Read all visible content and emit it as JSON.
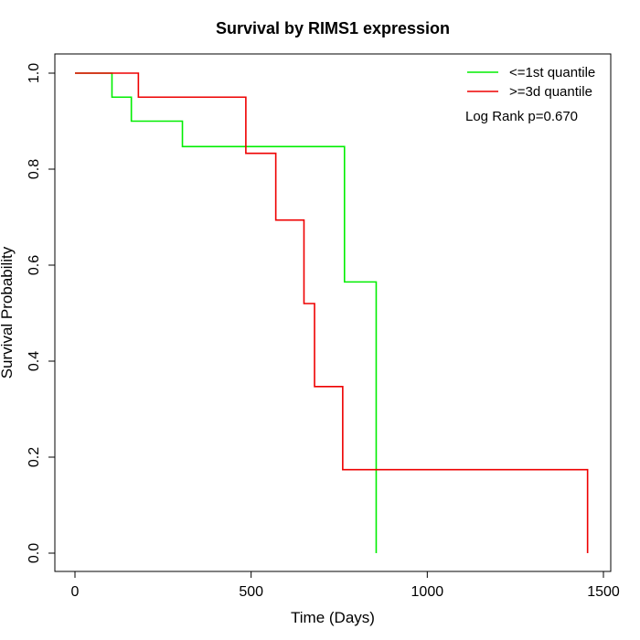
{
  "chart_data": {
    "type": "line",
    "subtype": "kaplan-meier-step",
    "title": "Survival by RIMS1 expression",
    "xlabel": "Time (Days)",
    "ylabel": "Survival Probability",
    "xlim": [
      0,
      1500
    ],
    "ylim": [
      0,
      1.0
    ],
    "x_ticks": [
      0,
      500,
      1000,
      1500
    ],
    "y_ticks": [
      0.0,
      0.2,
      0.4,
      0.6,
      0.8,
      1.0
    ],
    "x_tick_labels": [
      "0",
      "500",
      "1000",
      "1500"
    ],
    "y_tick_labels": [
      "0.0",
      "0.2",
      "0.4",
      "0.6",
      "0.8",
      "1.0"
    ],
    "grid": false,
    "legend_position": "top-right",
    "annotation": "Log Rank p=0.670",
    "series": [
      {
        "name": "<=1st quantile",
        "color": "#00ee00",
        "x": [
          0,
          105,
          160,
          305,
          765,
          855,
          855
        ],
        "y": [
          1.0,
          0.95,
          0.9,
          0.847,
          0.565,
          0.0,
          0.0
        ]
      },
      {
        "name": ">=3d quantile",
        "color": "#ee0000",
        "x": [
          0,
          180,
          485,
          570,
          650,
          680,
          760,
          1455,
          1455
        ],
        "y": [
          1.0,
          0.95,
          0.833,
          0.694,
          0.52,
          0.347,
          0.174,
          0.0,
          0.0
        ]
      }
    ]
  }
}
